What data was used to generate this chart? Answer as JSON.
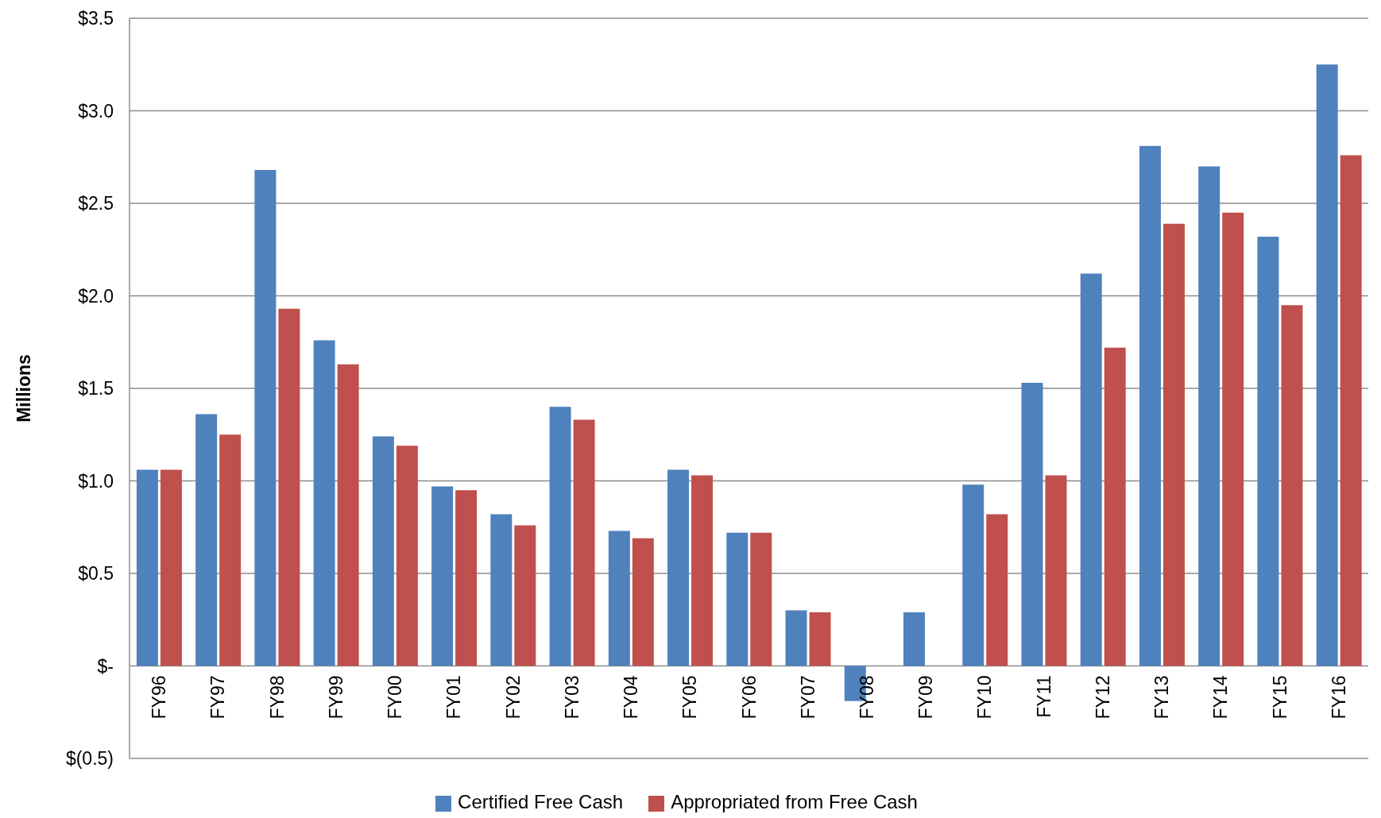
{
  "chart_data": {
    "type": "bar",
    "ylabel": "Millions",
    "categories": [
      "FY96",
      "FY97",
      "FY98",
      "FY99",
      "FY00",
      "FY01",
      "FY02",
      "FY03",
      "FY04",
      "FY05",
      "FY06",
      "FY07",
      "FY08",
      "FY09",
      "FY10",
      "FY11",
      "FY12",
      "FY13",
      "FY14",
      "FY15",
      "FY16"
    ],
    "series": [
      {
        "name": "Certified Free Cash",
        "color": "#4f81bd",
        "values": [
          1.06,
          1.36,
          2.68,
          1.76,
          1.24,
          0.97,
          0.82,
          1.4,
          0.73,
          1.06,
          0.72,
          0.3,
          -0.19,
          0.29,
          0.98,
          1.53,
          2.12,
          2.81,
          2.7,
          2.32,
          3.25
        ]
      },
      {
        "name": "Appropriated from Free Cash",
        "color": "#c0504d",
        "values": [
          1.06,
          1.25,
          1.93,
          1.63,
          1.19,
          0.95,
          0.76,
          1.33,
          0.69,
          1.03,
          0.72,
          0.29,
          null,
          null,
          0.82,
          1.03,
          1.72,
          2.39,
          2.45,
          1.95,
          2.76
        ]
      }
    ],
    "ylim": [
      -0.5,
      3.5
    ],
    "yticks": [
      {
        "value": -0.5,
        "label": "$(0.5)"
      },
      {
        "value": 0,
        "label": "$-"
      },
      {
        "value": 0.5,
        "label": "$0.5"
      },
      {
        "value": 1,
        "label": "$1.0"
      },
      {
        "value": 1.5,
        "label": "$1.5"
      },
      {
        "value": 2,
        "label": "$2.0"
      },
      {
        "value": 2.5,
        "label": "$2.5"
      },
      {
        "value": 3,
        "label": "$3.0"
      },
      {
        "value": 3.5,
        "label": "$3.5"
      }
    ],
    "grid": "y",
    "legend": "bottom"
  }
}
